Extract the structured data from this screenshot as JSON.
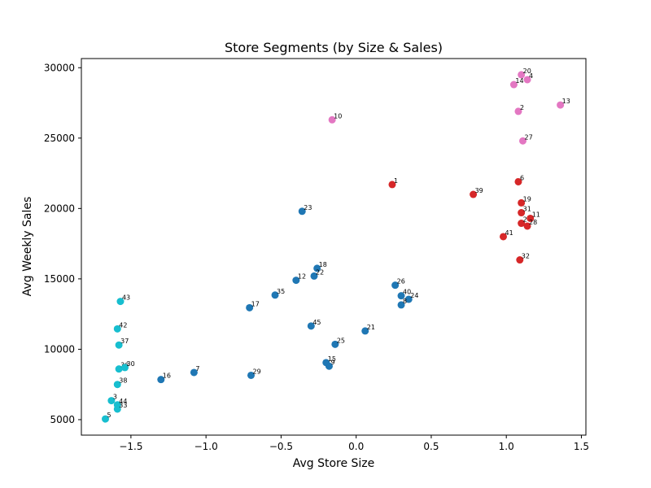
{
  "chart_data": {
    "type": "scatter",
    "title": "Store Segments (by Size & Sales)",
    "xlabel": "Avg Store Size",
    "ylabel": "Avg Weekly Sales",
    "xlim": [
      -1.83,
      1.53
    ],
    "ylim": [
      3900,
      30650
    ],
    "x_ticks": [
      -1.5,
      -1.0,
      -0.5,
      0.0,
      0.5,
      1.0,
      1.5
    ],
    "x_tick_labels": [
      "−1.5",
      "−1.0",
      "−0.5",
      "0.0",
      "0.5",
      "1.0",
      "1.5"
    ],
    "y_ticks": [
      5000,
      10000,
      15000,
      20000,
      25000,
      30000
    ],
    "y_tick_labels": [
      "5000",
      "10000",
      "15000",
      "20000",
      "25000",
      "30000"
    ],
    "grid": false,
    "series": [
      {
        "color": "#1f77b4",
        "points": [
          {
            "label": "23",
            "x": -0.36,
            "y": 19800
          },
          {
            "label": "18",
            "x": -0.26,
            "y": 15750
          },
          {
            "label": "22",
            "x": -0.28,
            "y": 15200
          },
          {
            "label": "12",
            "x": -0.4,
            "y": 14900
          },
          {
            "label": "35",
            "x": -0.54,
            "y": 13850
          },
          {
            "label": "17",
            "x": -0.71,
            "y": 12950
          },
          {
            "label": "26",
            "x": 0.26,
            "y": 14550
          },
          {
            "label": "40",
            "x": 0.3,
            "y": 13800
          },
          {
            "label": "24",
            "x": 0.35,
            "y": 13550
          },
          {
            "label": "8",
            "x": 0.3,
            "y": 13150
          },
          {
            "label": "45",
            "x": -0.3,
            "y": 11650
          },
          {
            "label": "21",
            "x": 0.06,
            "y": 11300
          },
          {
            "label": "25",
            "x": -0.14,
            "y": 10350
          },
          {
            "label": "15",
            "x": -0.2,
            "y": 9050
          },
          {
            "label": "9",
            "x": -0.18,
            "y": 8800
          },
          {
            "label": "7",
            "x": -1.08,
            "y": 8350
          },
          {
            "label": "29",
            "x": -0.7,
            "y": 8150
          },
          {
            "label": "16",
            "x": -1.3,
            "y": 7850
          }
        ]
      },
      {
        "color": "#d62728",
        "points": [
          {
            "label": "1",
            "x": 0.24,
            "y": 21700
          },
          {
            "label": "6",
            "x": 1.08,
            "y": 21900
          },
          {
            "label": "39",
            "x": 0.78,
            "y": 21000
          },
          {
            "label": "19",
            "x": 1.1,
            "y": 20400
          },
          {
            "label": "31",
            "x": 1.1,
            "y": 19700
          },
          {
            "label": "11",
            "x": 1.16,
            "y": 19300
          },
          {
            "label": "2",
            "x": 1.1,
            "y": 18950
          },
          {
            "label": "28",
            "x": 1.14,
            "y": 18750
          },
          {
            "label": "41",
            "x": 0.98,
            "y": 18000
          },
          {
            "label": "32",
            "x": 1.09,
            "y": 16350
          }
        ]
      },
      {
        "color": "#e377c2",
        "points": [
          {
            "label": "20",
            "x": 1.1,
            "y": 29500
          },
          {
            "label": "4",
            "x": 1.14,
            "y": 29150
          },
          {
            "label": "14",
            "x": 1.05,
            "y": 28800
          },
          {
            "label": "13",
            "x": 1.36,
            "y": 27350
          },
          {
            "label": "2",
            "x": 1.08,
            "y": 26900
          },
          {
            "label": "10",
            "x": -0.16,
            "y": 26300
          },
          {
            "label": "27",
            "x": 1.11,
            "y": 24800
          }
        ]
      },
      {
        "color": "#17becf",
        "points": [
          {
            "label": "43",
            "x": -1.57,
            "y": 13400
          },
          {
            "label": "42",
            "x": -1.59,
            "y": 11450
          },
          {
            "label": "37",
            "x": -1.58,
            "y": 10300
          },
          {
            "label": "36",
            "x": -1.58,
            "y": 8600
          },
          {
            "label": "30",
            "x": -1.54,
            "y": 8700
          },
          {
            "label": "38",
            "x": -1.59,
            "y": 7500
          },
          {
            "label": "3",
            "x": -1.63,
            "y": 6350
          },
          {
            "label": "44",
            "x": -1.59,
            "y": 6050
          },
          {
            "label": "33",
            "x": -1.59,
            "y": 5750
          },
          {
            "label": "5",
            "x": -1.67,
            "y": 5050
          }
        ]
      }
    ]
  }
}
